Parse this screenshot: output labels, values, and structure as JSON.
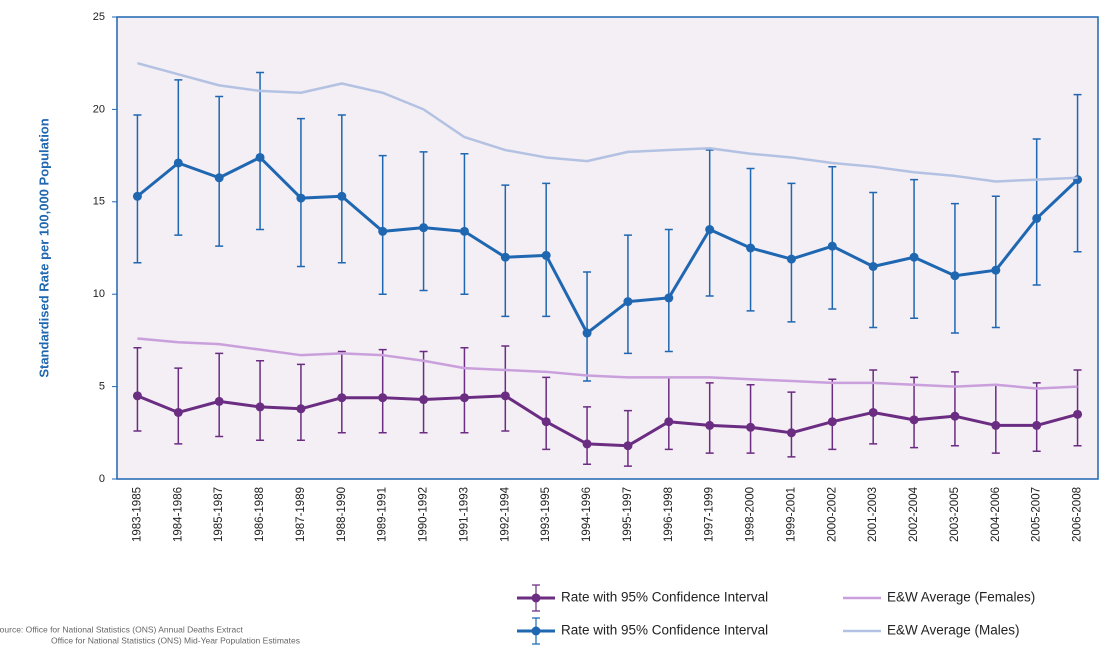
{
  "chart_data": {
    "type": "line",
    "y_label": "Standardised Rate per 100,000 Population",
    "categories": [
      "1983-1985",
      "1984-1986",
      "1985-1987",
      "1986-1988",
      "1987-1989",
      "1988-1990",
      "1989-1991",
      "1990-1992",
      "1991-1993",
      "1992-1994",
      "1993-1995",
      "1994-1996",
      "1995-1997",
      "1996-1998",
      "1997-1999",
      "1998-2000",
      "1999-2001",
      "2000-2002",
      "2001-2003",
      "2002-2004",
      "2003-2005",
      "2004-2006",
      "2005-2007",
      "2006-2008"
    ],
    "series": [
      {
        "name": "Rate with 95% Confidence Interval",
        "color": "#6b2d82",
        "values": [
          4.5,
          3.6,
          4.2,
          3.9,
          3.8,
          4.4,
          4.4,
          4.3,
          4.4,
          4.5,
          3.1,
          1.9,
          1.8,
          3.1,
          2.9,
          2.8,
          2.5,
          3.1,
          3.6,
          3.2,
          3.4,
          2.9,
          2.9,
          3.5
        ],
        "ci_low": [
          2.6,
          1.9,
          2.3,
          2.1,
          2.1,
          2.5,
          2.5,
          2.5,
          2.5,
          2.6,
          1.6,
          0.8,
          0.7,
          1.6,
          1.4,
          1.4,
          1.2,
          1.6,
          1.9,
          1.7,
          1.8,
          1.4,
          1.5,
          1.8
        ],
        "ci_high": [
          7.1,
          6.0,
          6.8,
          6.4,
          6.2,
          6.9,
          7.0,
          6.9,
          7.1,
          7.2,
          5.5,
          3.9,
          3.7,
          5.5,
          5.2,
          5.1,
          4.7,
          5.4,
          5.9,
          5.5,
          5.8,
          5.1,
          5.2,
          5.9
        ]
      },
      {
        "name": "Rate with 95% Confidence Interval",
        "color": "#1f67b1",
        "values": [
          15.3,
          17.1,
          16.3,
          17.4,
          15.2,
          15.3,
          13.4,
          13.6,
          13.4,
          12.0,
          12.1,
          7.9,
          9.6,
          9.8,
          13.5,
          12.5,
          11.9,
          12.6,
          11.5,
          12.0,
          11.0,
          11.3,
          14.1,
          16.2
        ],
        "ci_low": [
          11.7,
          13.2,
          12.6,
          13.5,
          11.5,
          11.7,
          10.0,
          10.2,
          10.0,
          8.8,
          8.8,
          5.3,
          6.8,
          6.9,
          9.9,
          9.1,
          8.5,
          9.2,
          8.2,
          8.7,
          7.9,
          8.2,
          10.5,
          12.3
        ],
        "ci_high": [
          19.7,
          21.6,
          20.7,
          22.0,
          19.5,
          19.7,
          17.5,
          17.7,
          17.6,
          15.9,
          16.0,
          11.2,
          13.2,
          13.5,
          17.8,
          16.8,
          16.0,
          16.9,
          15.5,
          16.2,
          14.9,
          15.3,
          18.4,
          20.8
        ]
      },
      {
        "name": "E&W Average  (Females)",
        "color": "#c9a0dc",
        "values": [
          7.6,
          7.4,
          7.3,
          7.0,
          6.7,
          6.8,
          6.7,
          6.4,
          6.0,
          5.9,
          5.8,
          5.6,
          5.5,
          5.5,
          5.5,
          5.4,
          5.3,
          5.2,
          5.2,
          5.1,
          5.0,
          5.1,
          4.9,
          5.0
        ]
      },
      {
        "name": "E&W Average  (Males)",
        "color": "#b3c2e2",
        "values": [
          22.5,
          21.9,
          21.3,
          21.0,
          20.9,
          21.4,
          20.9,
          20.0,
          18.5,
          17.8,
          17.4,
          17.2,
          17.7,
          17.8,
          17.9,
          17.6,
          17.4,
          17.1,
          16.9,
          16.6,
          16.4,
          16.1,
          16.2,
          16.3
        ]
      }
    ],
    "ylim": [
      0,
      25
    ],
    "yticks": [
      0,
      5,
      10,
      15,
      20,
      25
    ],
    "source": [
      "Source:  Office for National Statistics (ONS) Annual Deaths Extract",
      "Office for National Statistics (ONS) Mid-Year Population Estimates"
    ]
  }
}
